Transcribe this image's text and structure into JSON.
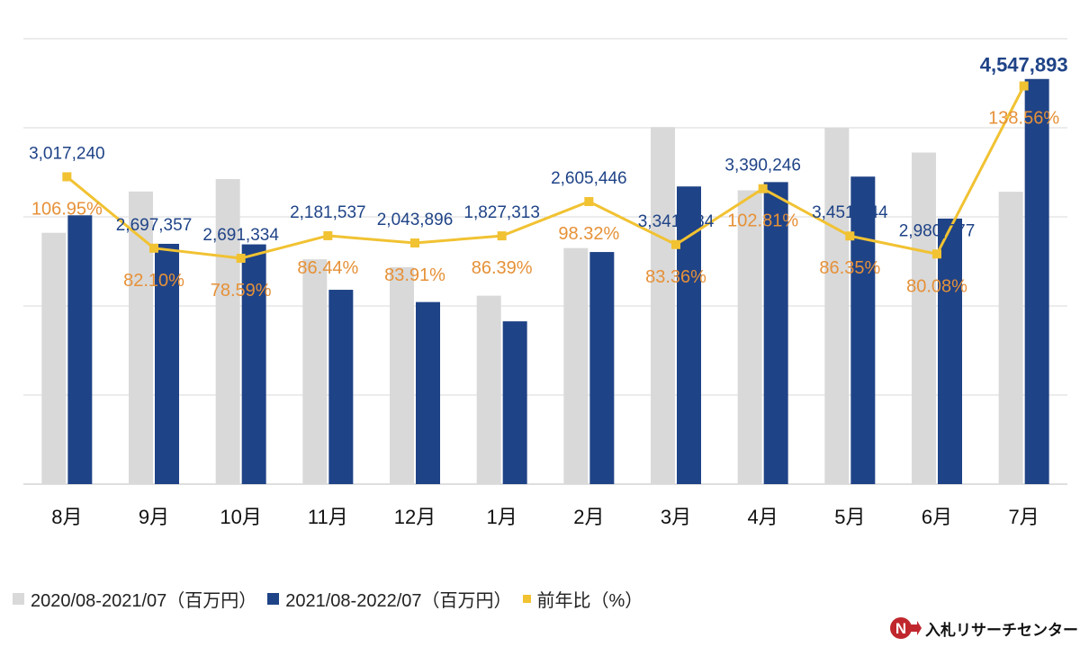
{
  "chart_data": {
    "type": "bar+line",
    "categories": [
      "8月",
      "9月",
      "10月",
      "11月",
      "12月",
      "1月",
      "2月",
      "3月",
      "4月",
      "5月",
      "6月",
      "7月"
    ],
    "series": [
      {
        "name": "2020/08-2021/07（百万円）",
        "type": "bar",
        "color": "#d9d9d9",
        "values": [
          2821000,
          3285000,
          3424000,
          2524000,
          2436000,
          2115000,
          2650000,
          4008000,
          3298000,
          3998000,
          3722000,
          3282000
        ]
      },
      {
        "name": "2021/08-2022/07（百万円）",
        "type": "bar",
        "color": "#1f4387",
        "values": [
          3017240,
          2697357,
          2691334,
          2181537,
          2043896,
          1827313,
          2605446,
          3341284,
          3390246,
          3451944,
          2980777,
          4547893
        ],
        "labels": [
          "3,017,240",
          "2,697,357",
          "2,691,334",
          "2,181,537",
          "2,043,896",
          "1,827,313",
          "2,605,446",
          "3,341,284",
          "3,390,246",
          "3,451,944",
          "2,980,777",
          "4,547,893"
        ]
      },
      {
        "name": "前年比（%）",
        "type": "line",
        "color": "#f1c232",
        "values": [
          106.95,
          82.1,
          78.59,
          86.44,
          83.91,
          86.39,
          98.32,
          83.36,
          102.81,
          86.35,
          80.08,
          138.56
        ],
        "labels": [
          "106.95%",
          "82.10%",
          "78.59%",
          "86.44%",
          "83.91%",
          "86.39%",
          "98.32%",
          "83.36%",
          "102.81%",
          "86.35%",
          "80.08%",
          "138.56%"
        ]
      }
    ],
    "ylim": [
      0,
      5000000
    ],
    "y2lim": [
      0,
      155
    ],
    "gridlines": true,
    "legend": "bottom-left",
    "label_color_bar": "#1f4387",
    "label_color_line": "#e69138"
  },
  "brand": {
    "name": "入札リサーチセンター",
    "mark": "N"
  }
}
